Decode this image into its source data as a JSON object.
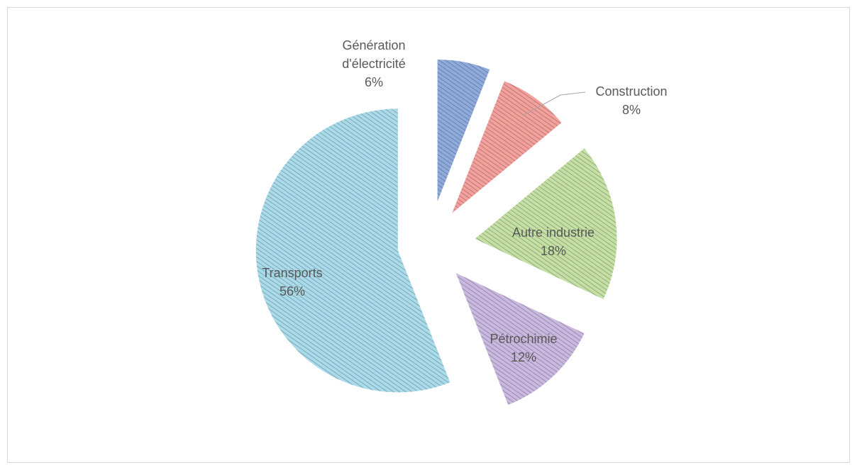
{
  "chart_data": {
    "type": "pie",
    "categories": [
      "Génération d'électricité",
      "Construction",
      "Autre industrie",
      "Pétrochimie",
      "Transports"
    ],
    "values": [
      6,
      8,
      18,
      12,
      56
    ],
    "value_labels": [
      "6%",
      "8%",
      "18%",
      "12%",
      "56%"
    ],
    "colors": [
      "#8faadc",
      "#f4a09c",
      "#c5e0a5",
      "#c9b8e0",
      "#a9dbea"
    ]
  }
}
